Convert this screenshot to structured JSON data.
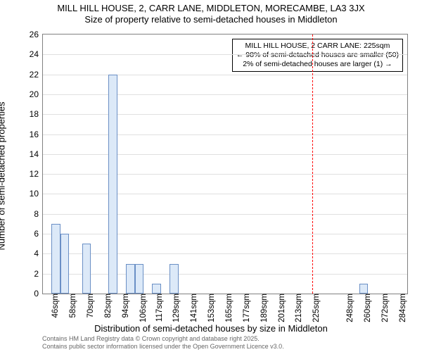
{
  "title_line1": "MILL HILL HOUSE, 2, CARR LANE, MIDDLETON, MORECAMBE, LA3 3JX",
  "title_line2": "Size of property relative to semi-detached houses in Middleton",
  "x_title": "Distribution of semi-detached houses by size in Middleton",
  "y_label": "Number of semi-detached properties",
  "footer_line1": "Contains HM Land Registry data © Crown copyright and database right 2025.",
  "footer_line2": "Contains public sector information licensed under the Open Government Licence v3.0.",
  "annotation": {
    "line1": "MILL HILL HOUSE, 2 CARR LANE: 225sqm",
    "line2": "← 98% of semi-detached houses are smaller (50)",
    "line3": "2% of semi-detached houses are larger (1) →"
  },
  "chart": {
    "type": "bar",
    "bar_fill": "#dce9f8",
    "bar_stroke": "#6a8fc5",
    "grid_color": "#e0e0e0",
    "background_color": "#ffffff",
    "highlight_color": "#ff0000",
    "highlight_x": 225,
    "x_min": 40,
    "x_max": 290,
    "ylim": [
      0,
      26
    ],
    "ytick_step": 2,
    "bar_bin_width": 6,
    "x_ticks": [
      46,
      58,
      70,
      82,
      94,
      106,
      117,
      129,
      141,
      153,
      165,
      177,
      189,
      201,
      213,
      225,
      248,
      260,
      272,
      284
    ],
    "x_tick_suffix": "sqm",
    "bars": [
      {
        "x": 49,
        "y": 7
      },
      {
        "x": 55,
        "y": 6
      },
      {
        "x": 70,
        "y": 5
      },
      {
        "x": 88,
        "y": 22
      },
      {
        "x": 100,
        "y": 3
      },
      {
        "x": 106,
        "y": 3
      },
      {
        "x": 118,
        "y": 1
      },
      {
        "x": 130,
        "y": 3
      },
      {
        "x": 260,
        "y": 1
      }
    ]
  }
}
